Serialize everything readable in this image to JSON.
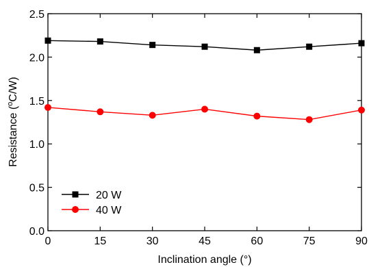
{
  "chart_data": {
    "type": "line",
    "xlabel": "Inclination angle (°)",
    "ylabel_prefix": "Resistance (",
    "ylabel_sup": "o",
    "ylabel_suffix": "C/W)",
    "xlim": [
      0,
      90
    ],
    "ylim": [
      0,
      2.5
    ],
    "xticks": [
      "0",
      "15",
      "30",
      "45",
      "60",
      "75",
      "90"
    ],
    "yticks": [
      "0.0",
      "0.5",
      "1.0",
      "1.5",
      "2.0",
      "2.5"
    ],
    "x": [
      0,
      15,
      30,
      45,
      60,
      75,
      90
    ],
    "series": [
      {
        "name": "20 W",
        "marker": "square",
        "color": "#000000",
        "values": [
          2.19,
          2.18,
          2.14,
          2.12,
          2.08,
          2.12,
          2.16
        ]
      },
      {
        "name": "40 W",
        "marker": "circle",
        "color": "#ff0000",
        "values": [
          1.42,
          1.37,
          1.33,
          1.4,
          1.32,
          1.28,
          1.39
        ]
      }
    ],
    "grid": false,
    "legend_position": "bottom-left"
  }
}
